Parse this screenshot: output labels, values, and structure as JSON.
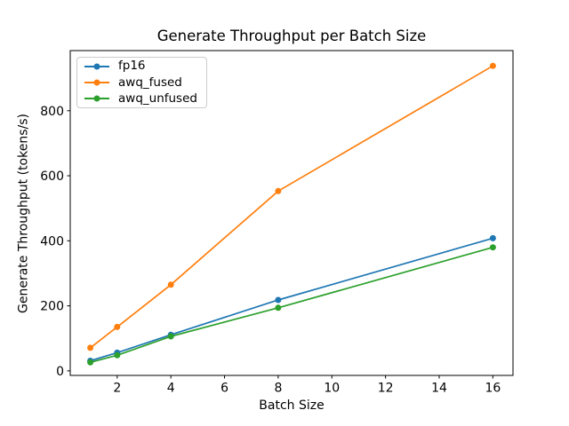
{
  "chart_data": {
    "type": "line",
    "title": "Generate Throughput per Batch Size",
    "xlabel": "Batch Size",
    "ylabel": "Generate Throughput (tokens/s)",
    "x": [
      1,
      2,
      4,
      8,
      16
    ],
    "series": [
      {
        "name": "fp16",
        "color": "#1f77b4",
        "values": [
          31,
          56,
          111,
          218,
          408
        ]
      },
      {
        "name": "awq_fused",
        "color": "#ff7f0e",
        "values": [
          71,
          135,
          265,
          553,
          938
        ]
      },
      {
        "name": "awq_unfused",
        "color": "#2ca02c",
        "values": [
          26,
          48,
          106,
          194,
          380
        ]
      }
    ],
    "xticks": [
      2,
      4,
      6,
      8,
      10,
      12,
      14,
      16
    ],
    "yticks": [
      0,
      200,
      400,
      600,
      800
    ],
    "xlim": [
      0.25,
      16.75
    ],
    "ylim": [
      -14,
      985
    ],
    "grid": false,
    "legend_position": "upper-left",
    "marker": "circle",
    "background_color": "#ffffff",
    "axis_color": "#000000"
  }
}
